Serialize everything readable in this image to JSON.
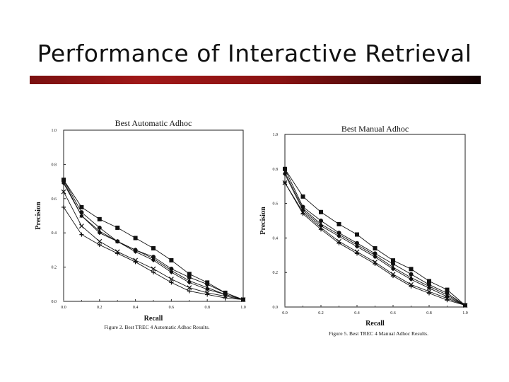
{
  "slide": {
    "title": "Performance of Interactive Retrieval",
    "accent_color": "#8b1414"
  },
  "chart_data": [
    {
      "type": "line",
      "title": "Best Automatic Adhoc",
      "xlabel": "Recall",
      "ylabel": "Precision",
      "caption": "Figure 2. Best TREC 4 Automatic Adhoc Results.",
      "x": [
        0.0,
        0.1,
        0.2,
        0.3,
        0.4,
        0.5,
        0.6,
        0.7,
        0.8,
        0.9,
        1.0
      ],
      "xticks": [
        "0.0",
        "0.2",
        "0.4",
        "0.6",
        "0.8",
        "1.0"
      ],
      "yticks": [
        "0.0",
        "0.2",
        "0.4",
        "0.6",
        "0.8",
        "1.0"
      ],
      "xlim": [
        0,
        1
      ],
      "ylim": [
        0,
        1
      ],
      "grid": false,
      "series": [
        {
          "marker": "square",
          "values": [
            0.71,
            0.55,
            0.48,
            0.43,
            0.37,
            0.31,
            0.24,
            0.16,
            0.11,
            0.05,
            0.01
          ]
        },
        {
          "marker": "circle",
          "values": [
            0.71,
            0.52,
            0.43,
            0.35,
            0.3,
            0.26,
            0.19,
            0.14,
            0.1,
            0.05,
            0.01
          ]
        },
        {
          "marker": "triangle",
          "values": [
            0.7,
            0.5,
            0.41,
            0.35,
            0.3,
            0.25,
            0.18,
            0.12,
            0.08,
            0.04,
            0.01
          ]
        },
        {
          "marker": "diamond",
          "values": [
            0.69,
            0.5,
            0.4,
            0.35,
            0.29,
            0.24,
            0.17,
            0.11,
            0.07,
            0.04,
            0.01
          ]
        },
        {
          "marker": "x",
          "values": [
            0.64,
            0.44,
            0.35,
            0.29,
            0.24,
            0.19,
            0.13,
            0.08,
            0.05,
            0.03,
            0.01
          ]
        },
        {
          "marker": "plus",
          "values": [
            0.55,
            0.39,
            0.33,
            0.28,
            0.23,
            0.17,
            0.11,
            0.06,
            0.04,
            0.02,
            0.01
          ]
        }
      ]
    },
    {
      "type": "line",
      "title": "Best Manual Adhoc",
      "xlabel": "Recall",
      "ylabel": "Precision",
      "caption": "Figure 5. Best TREC 4 Manual Adhoc Results.",
      "x": [
        0.0,
        0.1,
        0.2,
        0.3,
        0.4,
        0.5,
        0.6,
        0.7,
        0.8,
        0.9,
        1.0
      ],
      "xticks": [
        "0.0",
        "0.2",
        "0.4",
        "0.6",
        "0.8",
        "1.0"
      ],
      "yticks": [
        "0.0",
        "0.2",
        "0.4",
        "0.6",
        "0.8",
        "1.0"
      ],
      "xlim": [
        0,
        1
      ],
      "ylim": [
        0,
        1
      ],
      "grid": false,
      "series": [
        {
          "marker": "square",
          "values": [
            0.8,
            0.64,
            0.55,
            0.48,
            0.42,
            0.34,
            0.27,
            0.22,
            0.15,
            0.1,
            0.01
          ]
        },
        {
          "marker": "circle",
          "values": [
            0.8,
            0.58,
            0.5,
            0.43,
            0.37,
            0.31,
            0.25,
            0.19,
            0.13,
            0.08,
            0.01
          ]
        },
        {
          "marker": "triangle",
          "values": [
            0.78,
            0.57,
            0.48,
            0.42,
            0.36,
            0.3,
            0.23,
            0.17,
            0.12,
            0.07,
            0.01
          ]
        },
        {
          "marker": "diamond",
          "values": [
            0.77,
            0.56,
            0.47,
            0.41,
            0.35,
            0.29,
            0.22,
            0.16,
            0.11,
            0.06,
            0.01
          ]
        },
        {
          "marker": "x",
          "values": [
            0.72,
            0.55,
            0.46,
            0.38,
            0.32,
            0.26,
            0.19,
            0.13,
            0.09,
            0.05,
            0.01
          ]
        },
        {
          "marker": "plus",
          "values": [
            0.72,
            0.54,
            0.45,
            0.37,
            0.31,
            0.25,
            0.18,
            0.12,
            0.08,
            0.04,
            0.01
          ]
        }
      ]
    }
  ]
}
